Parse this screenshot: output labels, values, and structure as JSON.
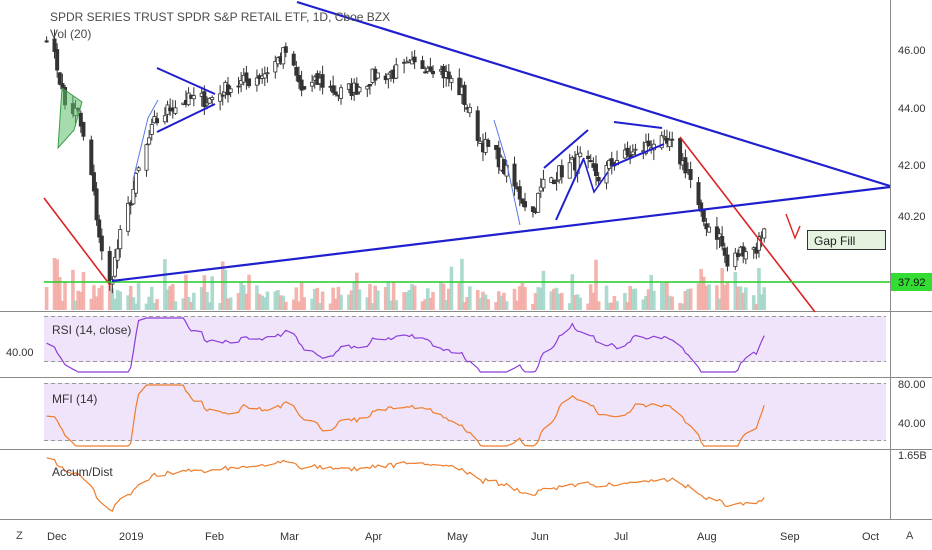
{
  "header": {
    "title": "SPDR SERIES TRUST SPDR S&P RETAIL ETF, 1D, Cboe BZX",
    "volume_label": "Vol (20)"
  },
  "panes": {
    "rsi_label": "RSI (14, close)",
    "mfi_label": "MFI (14)",
    "ad_label": "Accum/Dist"
  },
  "annotations": {
    "gap_fill": "Gap Fill"
  },
  "price_labels": {
    "last": "40.20",
    "support": "37.92"
  },
  "axis": {
    "price_ticks": [
      "46.00",
      "44.00",
      "42.00",
      "40.20",
      "37.92"
    ],
    "rsi_tick": "40.00",
    "mfi_ticks": [
      "80.00",
      "40.00"
    ],
    "ad_tick": "1.65B",
    "months": [
      "Dec",
      "2019",
      "Feb",
      "Mar",
      "Apr",
      "May",
      "Jun",
      "Jul",
      "Aug",
      "Sep",
      "Oct",
      "Oct"
    ]
  },
  "toolbar": {
    "left": "Z",
    "right": "A"
  },
  "colors": {
    "up": "#333333",
    "down": "#333333",
    "vol_up": "#9fd3c7",
    "vol_down": "#f3a6a0",
    "trendline": "#1f1fd0",
    "support": "#22cc22",
    "red_line": "#dd2222",
    "oscillator": "#8b3fd8",
    "mfi": "#ef7c2a",
    "ad": "#ef7c2a",
    "pane_bg": "#efe3fb"
  },
  "chart_data": {
    "type": "candlestick",
    "title": "SPDR SERIES TRUST SPDR S&P RETAIL ETF, 1D, Cboe BZX",
    "x_range": [
      "2018-11-29",
      "2019-10-10"
    ],
    "y_range": [
      37.4,
      47.4
    ],
    "key_levels": {
      "last_close": 40.2,
      "support": 37.92
    },
    "price_path": [
      [
        "2018-11-30",
        46.6
      ],
      [
        "2018-12-04",
        45.5
      ],
      [
        "2018-12-07",
        44.2
      ],
      [
        "2018-12-12",
        43.9
      ],
      [
        "2018-12-17",
        41.8
      ],
      [
        "2018-12-21",
        39.2
      ],
      [
        "2018-12-24",
        38.2
      ],
      [
        "2018-12-28",
        39.8
      ],
      [
        "2019-01-04",
        42.0
      ],
      [
        "2019-01-10",
        43.6
      ],
      [
        "2019-01-17",
        44.2
      ],
      [
        "2019-01-24",
        44.4
      ],
      [
        "2019-01-31",
        44.4
      ],
      [
        "2019-02-07",
        44.8
      ],
      [
        "2019-02-14",
        45.0
      ],
      [
        "2019-02-21",
        45.3
      ],
      [
        "2019-03-01",
        46.0
      ],
      [
        "2019-03-07",
        44.7
      ],
      [
        "2019-03-14",
        45.0
      ],
      [
        "2019-03-21",
        44.6
      ],
      [
        "2019-03-28",
        44.8
      ],
      [
        "2019-04-04",
        45.2
      ],
      [
        "2019-04-11",
        45.3
      ],
      [
        "2019-04-18",
        45.5
      ],
      [
        "2019-04-25",
        45.6
      ],
      [
        "2019-05-01",
        45.2
      ],
      [
        "2019-05-07",
        44.6
      ],
      [
        "2019-05-14",
        43.0
      ],
      [
        "2019-05-21",
        42.4
      ],
      [
        "2019-05-28",
        41.3
      ],
      [
        "2019-06-03",
        40.6
      ],
      [
        "2019-06-07",
        41.6
      ],
      [
        "2019-06-14",
        42.0
      ],
      [
        "2019-06-21",
        42.4
      ],
      [
        "2019-06-28",
        41.8
      ],
      [
        "2019-07-05",
        42.4
      ],
      [
        "2019-07-12",
        42.6
      ],
      [
        "2019-07-19",
        43.0
      ],
      [
        "2019-07-26",
        42.8
      ],
      [
        "2019-08-01",
        42.0
      ],
      [
        "2019-08-06",
        40.4
      ],
      [
        "2019-08-13",
        39.8
      ],
      [
        "2019-08-16",
        38.8
      ],
      [
        "2019-08-22",
        39.4
      ],
      [
        "2019-08-27",
        39.4
      ],
      [
        "2019-08-30",
        40.2
      ]
    ],
    "indicators": [
      "Vol (20)",
      "RSI (14, close)",
      "MFI (14)",
      "Accum/Dist"
    ]
  }
}
